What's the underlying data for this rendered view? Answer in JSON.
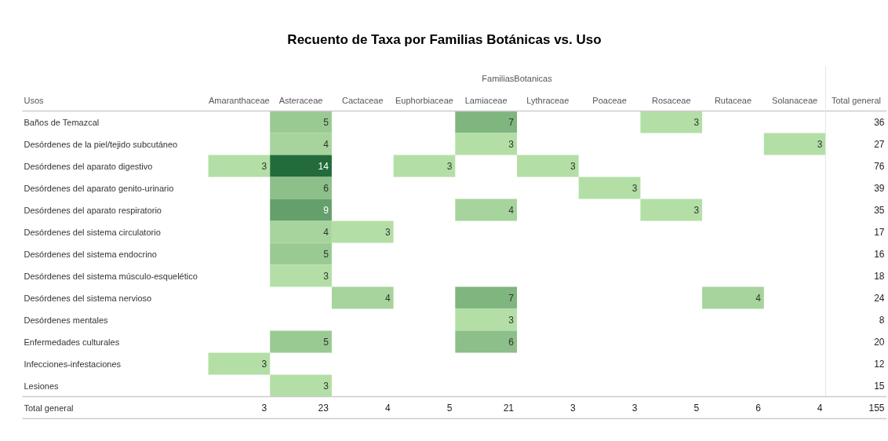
{
  "chart_data": {
    "type": "heatmap",
    "title": "Recuento de Taxa por Familias Botánicas vs. Uso",
    "xlabel": "FamiliasBotanicas",
    "ylabel": "Usos",
    "y2label": "Total general",
    "categories": [
      "Amaranthaceae",
      "Asteraceae",
      "Cactaceae",
      "Euphorbiaceae",
      "Lamiaceae",
      "Lythraceae",
      "Poaceae",
      "Rosaceae",
      "Rutaceae",
      "Solanaceae"
    ],
    "y_categories": [
      "Baños de Temazcal",
      "Desórdenes de la piel/tejido subcutáneo",
      "Desórdenes del aparato digestivo",
      "Desórdenes del aparato genito-urinario",
      "Desórdenes del aparato respiratorio",
      "Desórdenes del sistema circulatorio",
      "Desórdenes del sistema endocrino",
      "Desórdenes del sistema músculo-esquelético",
      "Desórdenes del sistema nervioso",
      "Desórdenes mentales",
      "Enfermedades culturales",
      "Infecciones-infestaciones",
      "Lesiones"
    ],
    "y2_categories": [
      "36",
      "27",
      "76",
      "39",
      "35",
      "17",
      "16",
      "18",
      "24",
      "8",
      "20",
      "12",
      "15"
    ],
    "cells": [
      [
        null,
        5,
        null,
        null,
        7,
        null,
        null,
        3,
        null,
        null
      ],
      [
        null,
        4,
        null,
        null,
        3,
        null,
        null,
        null,
        null,
        3
      ],
      [
        3,
        14,
        null,
        3,
        null,
        3,
        null,
        null,
        null,
        null
      ],
      [
        null,
        6,
        null,
        null,
        null,
        null,
        3,
        null,
        null,
        null
      ],
      [
        null,
        9,
        null,
        null,
        4,
        null,
        null,
        3,
        null,
        null
      ],
      [
        null,
        4,
        3,
        null,
        null,
        null,
        null,
        null,
        null,
        null
      ],
      [
        null,
        5,
        null,
        null,
        null,
        null,
        null,
        null,
        null,
        null
      ],
      [
        null,
        3,
        null,
        null,
        null,
        null,
        null,
        null,
        null,
        null
      ],
      [
        null,
        null,
        4,
        null,
        7,
        null,
        null,
        null,
        4,
        null
      ],
      [
        null,
        null,
        null,
        null,
        3,
        null,
        null,
        null,
        null,
        null
      ],
      [
        null,
        5,
        null,
        null,
        6,
        null,
        null,
        null,
        null,
        null
      ],
      [
        3,
        null,
        null,
        null,
        null,
        null,
        null,
        null,
        null,
        null
      ],
      [
        null,
        3,
        null,
        null,
        null,
        null,
        null,
        null,
        null,
        null
      ]
    ],
    "data_labels": true,
    "totals": [
      "3",
      "23",
      "4",
      "5",
      "21",
      "3",
      "3",
      "5",
      "6",
      "4",
      "155"
    ],
    "annotations": [
      "Total general"
    ]
  }
}
